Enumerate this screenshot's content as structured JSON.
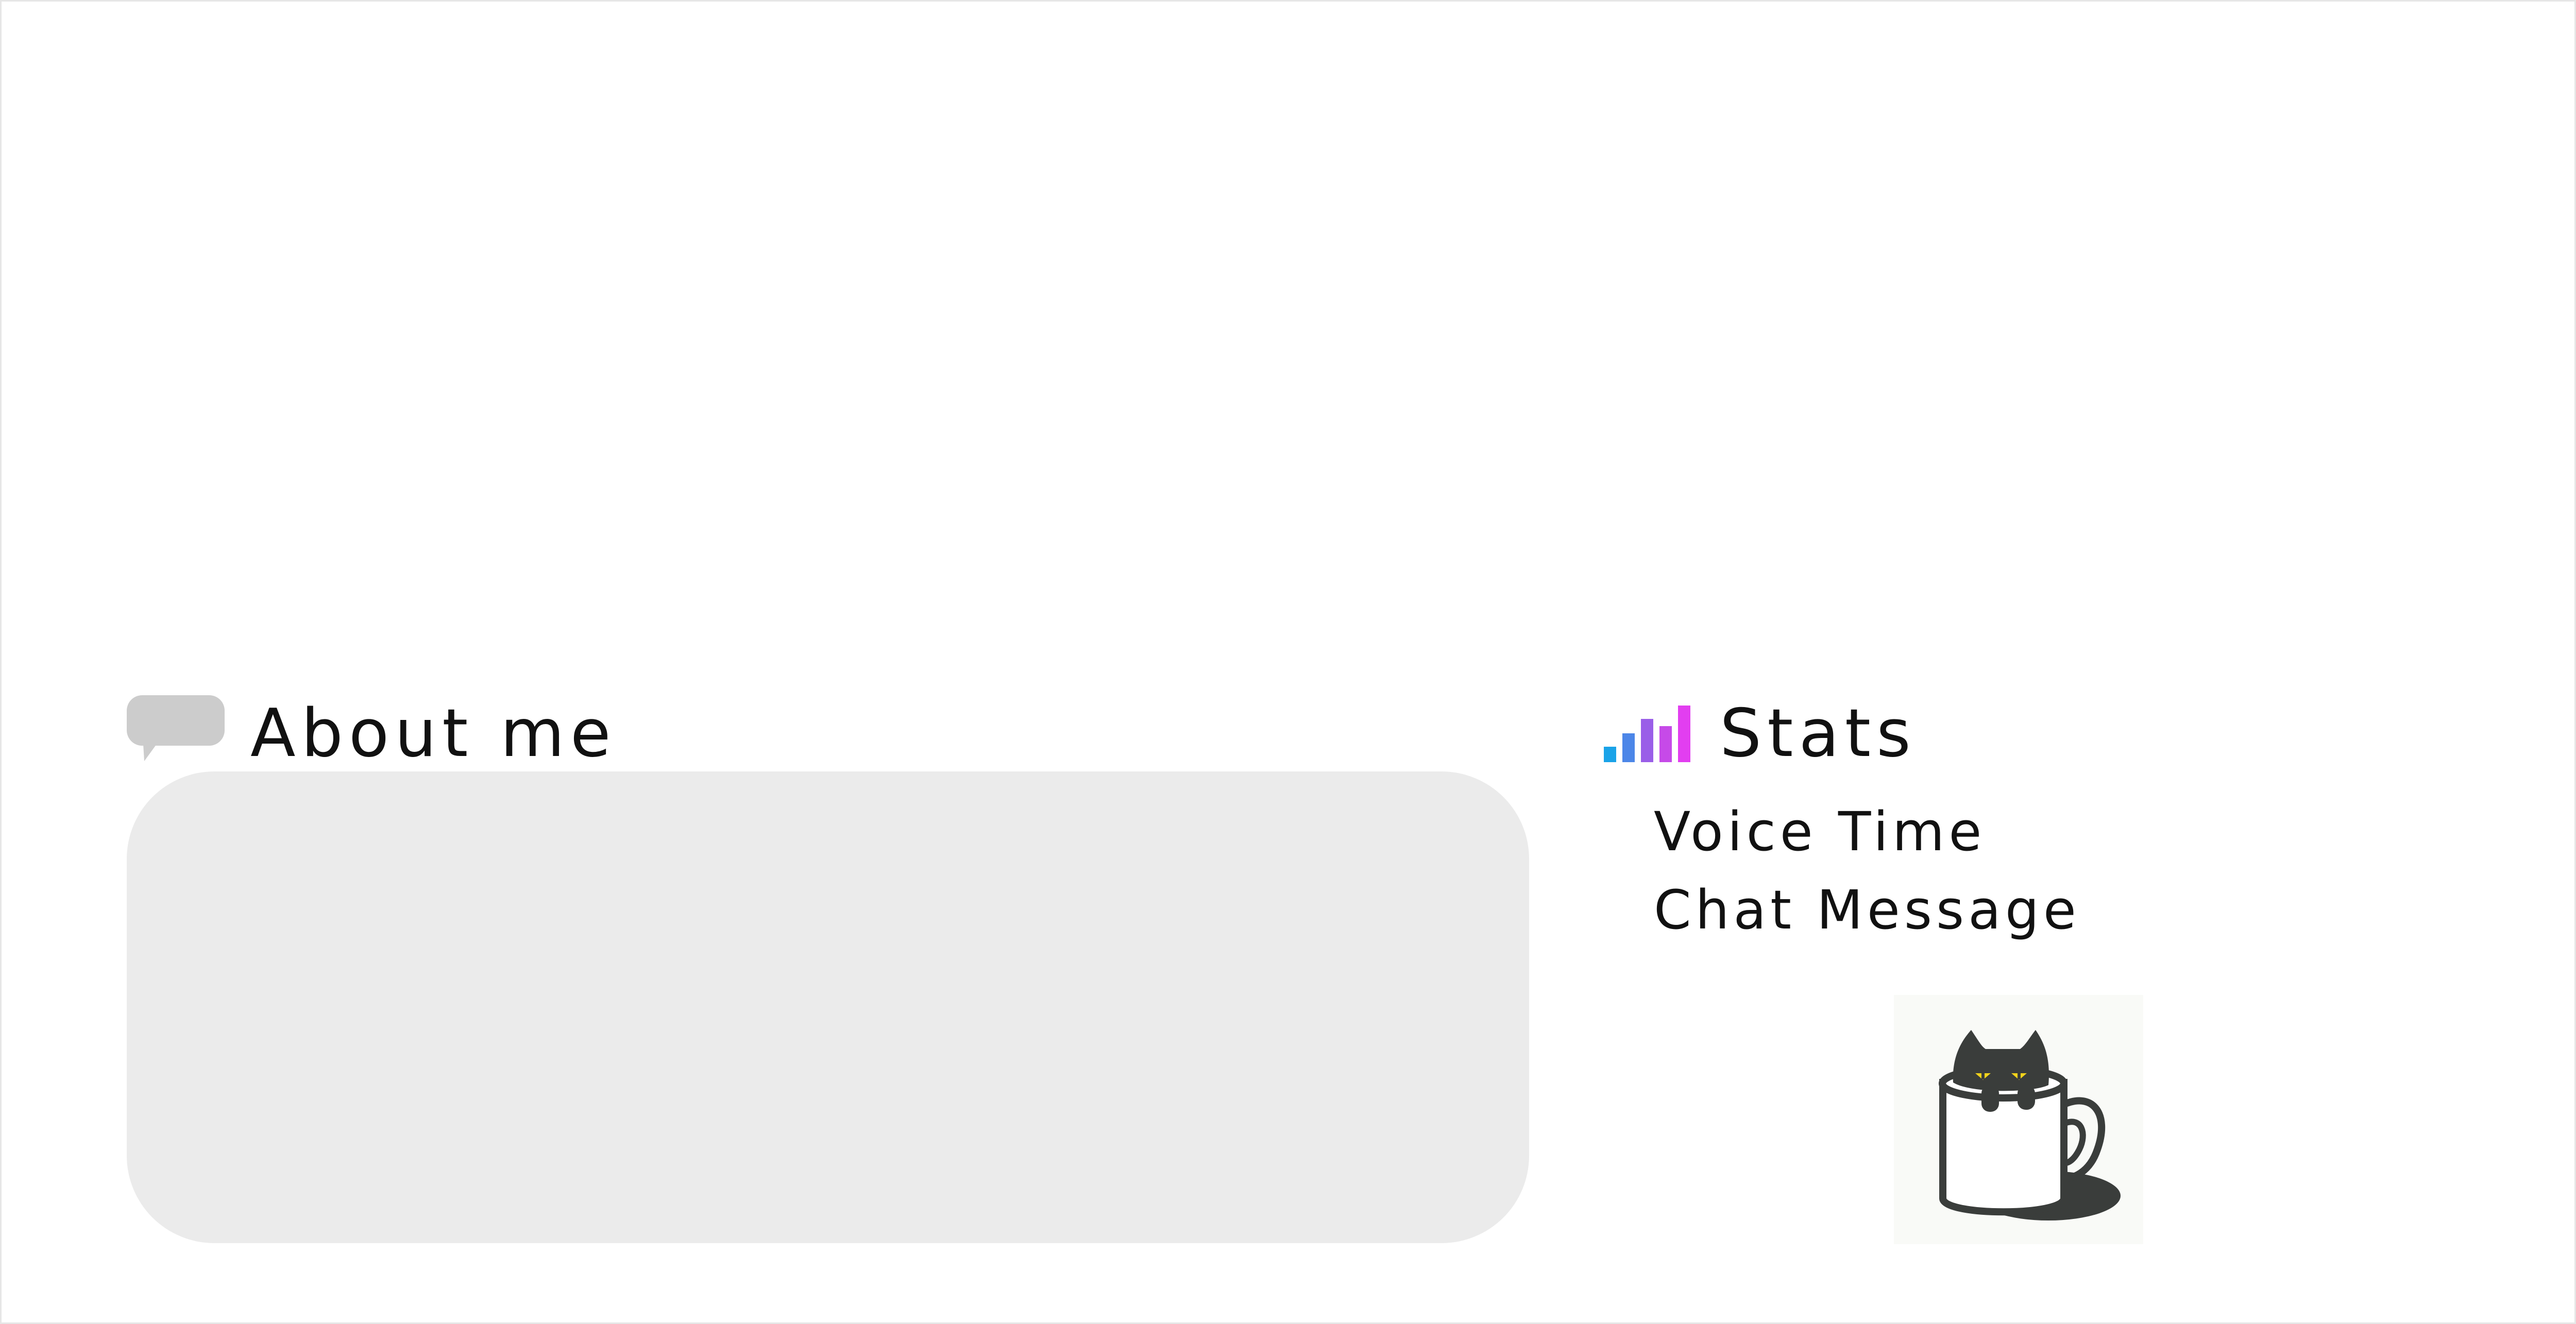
{
  "about": {
    "title": "About me",
    "icon": "speech-bubble-icon"
  },
  "stats": {
    "title": "Stats",
    "icon": "signal-bars-icon",
    "items": [
      {
        "label": "Voice Time"
      },
      {
        "label": "Chat Message"
      }
    ]
  },
  "colors": {
    "about_box": "#ebebeb",
    "speech_icon": "#cccccc",
    "bars_gradient": [
      "#1aa3e8",
      "#4c86e8",
      "#9a5ee8",
      "#c64ae8",
      "#e23ef0"
    ],
    "text": "#111111"
  },
  "mascot": {
    "icon": "cat-in-mug-icon"
  }
}
